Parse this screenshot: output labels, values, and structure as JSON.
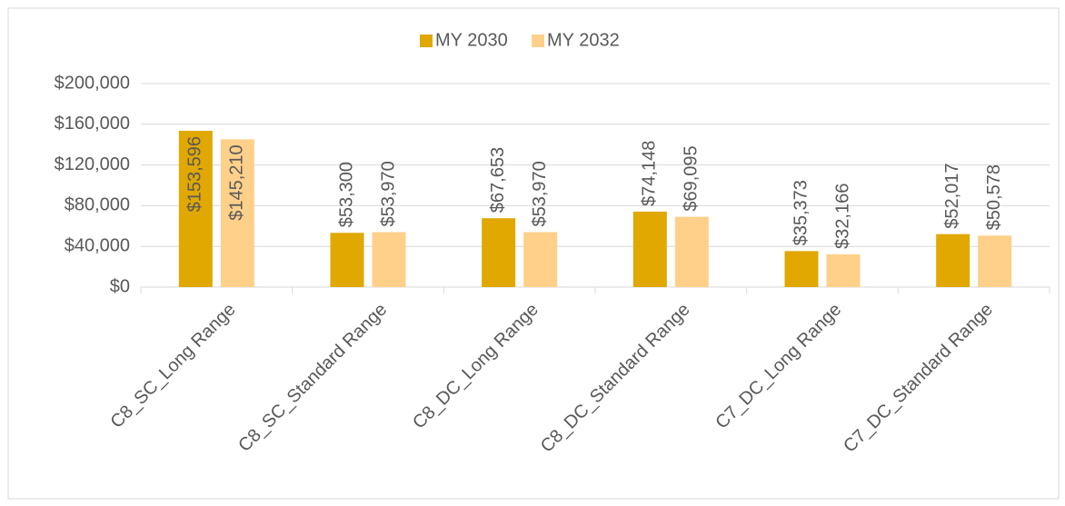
{
  "chart_data": {
    "type": "bar",
    "categories": [
      "C8_SC_Long Range",
      "C8_SC_Standard Range",
      "C8_DC_Long Range",
      "C8_DC_Standard Range",
      "C7_DC_Long Range",
      "C7_DC_Standard Range"
    ],
    "series": [
      {
        "name": "MY 2030",
        "color": "#e0a800",
        "values": [
          153596,
          53300,
          67653,
          74148,
          35373,
          52017
        ],
        "value_labels": [
          "$153,596",
          "$53,300",
          "$67,653",
          "$74,148",
          "$35,373",
          "$52,017"
        ]
      },
      {
        "name": "MY 2032",
        "color": "#ffd08a",
        "values": [
          145210,
          53970,
          53970,
          69095,
          32166,
          50578
        ],
        "value_labels": [
          "$145,210",
          "$53,970",
          "$53,970",
          "$69,095",
          "$32,166",
          "$50,578"
        ]
      }
    ],
    "ylim": [
      0,
      200000
    ],
    "yticks": [
      {
        "value": 0,
        "label": "$0"
      },
      {
        "value": 40000,
        "label": "$40,000"
      },
      {
        "value": 80000,
        "label": "$80,000"
      },
      {
        "value": 120000,
        "label": "$120,000"
      },
      {
        "value": 160000,
        "label": "$160,000"
      },
      {
        "value": 200000,
        "label": "$200,000"
      }
    ],
    "grid": true,
    "legend": "top"
  }
}
